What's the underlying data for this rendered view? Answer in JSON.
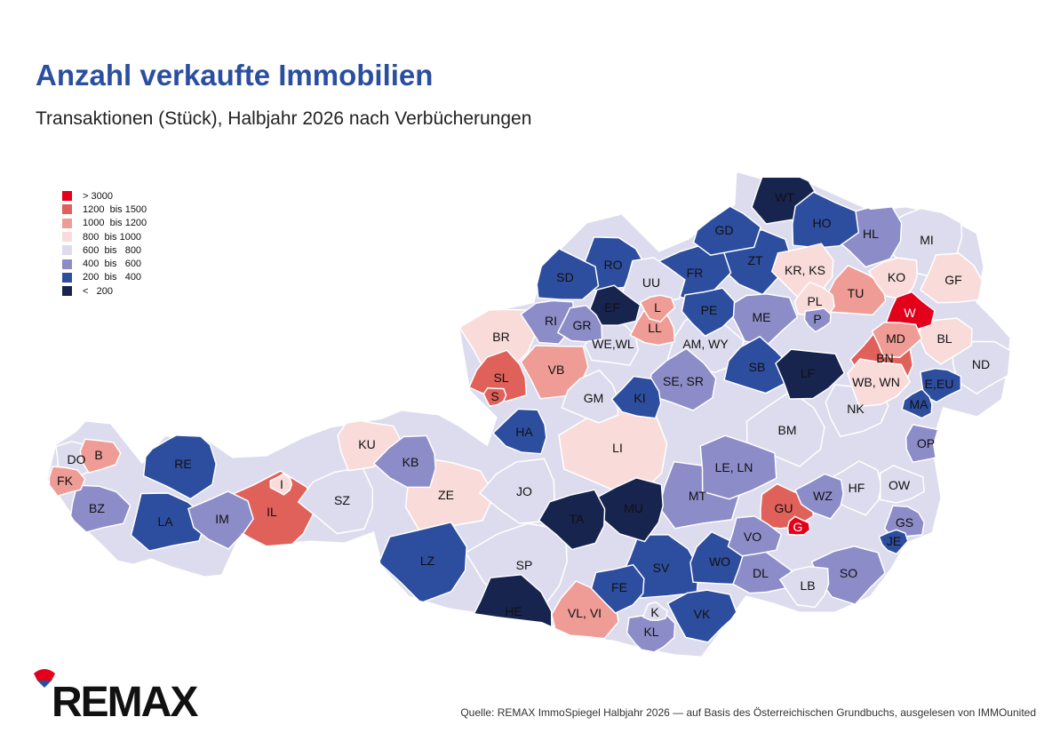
{
  "title": "Anzahl verkaufte Immobilien",
  "subtitle": "Transaktionen (Stück), Halbjahr 2026 nach Verbücherungen",
  "source": "Quelle: REMAX ImmoSpiegel Halbjahr 2026 — auf Basis des Österreichischen Grundbuchs, ausgelesen von IMMOunited",
  "logo_text": "REMAX",
  "legend": [
    {
      "label": "> 3000",
      "color": "#e2001a"
    },
    {
      "label": "1200  bis 1500",
      "color": "#e0605a"
    },
    {
      "label": "1000  bis 1200",
      "color": "#ee9c95"
    },
    {
      "label": "800  bis 1000",
      "color": "#f9dcda"
    },
    {
      "label": "600  bis   800",
      "color": "#dcdcee"
    },
    {
      "label": "400  bis   600",
      "color": "#8c8cc8"
    },
    {
      "label": "200  bis   400",
      "color": "#2d4d9e"
    },
    {
      "label": "<   200",
      "color": "#17244e"
    }
  ],
  "districts": [
    {
      "code": "WT",
      "class": 7
    },
    {
      "code": "HO",
      "class": 6
    },
    {
      "code": "GD",
      "class": 6
    },
    {
      "code": "ZT",
      "class": 6
    },
    {
      "code": "HL",
      "class": 5
    },
    {
      "code": "MI",
      "class": 4
    },
    {
      "code": "RO",
      "class": 6
    },
    {
      "code": "SD",
      "class": 6
    },
    {
      "code": "UU",
      "class": 4
    },
    {
      "code": "FR",
      "class": 6
    },
    {
      "code": "KR, KS",
      "class": 3
    },
    {
      "code": "KO",
      "class": 3
    },
    {
      "code": "GF",
      "class": 3
    },
    {
      "code": "TU",
      "class": 2
    },
    {
      "code": "EF",
      "class": 7
    },
    {
      "code": "L",
      "class": 2
    },
    {
      "code": "PE",
      "class": 6
    },
    {
      "code": "RI",
      "class": 5
    },
    {
      "code": "GR",
      "class": 5
    },
    {
      "code": "PL",
      "class": 3
    },
    {
      "code": "W",
      "class": 0
    },
    {
      "code": "ME",
      "class": 5
    },
    {
      "code": "P",
      "class": 5
    },
    {
      "code": "BR",
      "class": 3
    },
    {
      "code": "LL",
      "class": 2
    },
    {
      "code": "WE,WL",
      "class": 4
    },
    {
      "code": "AM, WY",
      "class": 4
    },
    {
      "code": "MD",
      "class": 2
    },
    {
      "code": "BL",
      "class": 3
    },
    {
      "code": "VB",
      "class": 2
    },
    {
      "code": "SL",
      "class": 1
    },
    {
      "code": "BN",
      "class": 1
    },
    {
      "code": "SB",
      "class": 6
    },
    {
      "code": "LF",
      "class": 7
    },
    {
      "code": "ND",
      "class": 4
    },
    {
      "code": "S",
      "class": 1
    },
    {
      "code": "GM",
      "class": 4
    },
    {
      "code": "KI",
      "class": 6
    },
    {
      "code": "SE, SR",
      "class": 5
    },
    {
      "code": "WB, WN",
      "class": 3
    },
    {
      "code": "E,EU",
      "class": 6
    },
    {
      "code": "NK",
      "class": 4
    },
    {
      "code": "MA",
      "class": 6
    },
    {
      "code": "HA",
      "class": 6
    },
    {
      "code": "BM",
      "class": 4
    },
    {
      "code": "KU",
      "class": 3
    },
    {
      "code": "DO",
      "class": 4
    },
    {
      "code": "B",
      "class": 2
    },
    {
      "code": "RE",
      "class": 6
    },
    {
      "code": "KB",
      "class": 5
    },
    {
      "code": "LI",
      "class": 3
    },
    {
      "code": "OP",
      "class": 5
    },
    {
      "code": "LE, LN",
      "class": 5
    },
    {
      "code": "FK",
      "class": 2
    },
    {
      "code": "I",
      "class": 3
    },
    {
      "code": "JO",
      "class": 4
    },
    {
      "code": "HF",
      "class": 4
    },
    {
      "code": "ZE",
      "class": 3
    },
    {
      "code": "OW",
      "class": 4
    },
    {
      "code": "BZ",
      "class": 5
    },
    {
      "code": "IL",
      "class": 1
    },
    {
      "code": "SZ",
      "class": 4
    },
    {
      "code": "WZ",
      "class": 5
    },
    {
      "code": "MT",
      "class": 5
    },
    {
      "code": "GU",
      "class": 1
    },
    {
      "code": "LA",
      "class": 6
    },
    {
      "code": "IM",
      "class": 5
    },
    {
      "code": "TA",
      "class": 7
    },
    {
      "code": "MU",
      "class": 7
    },
    {
      "code": "GS",
      "class": 5
    },
    {
      "code": "G",
      "class": 0
    },
    {
      "code": "VO",
      "class": 5
    },
    {
      "code": "JE",
      "class": 6
    },
    {
      "code": "LZ",
      "class": 6
    },
    {
      "code": "SP",
      "class": 4
    },
    {
      "code": "SV",
      "class": 6
    },
    {
      "code": "WO",
      "class": 6
    },
    {
      "code": "DL",
      "class": 5
    },
    {
      "code": "SO",
      "class": 5
    },
    {
      "code": "FE",
      "class": 6
    },
    {
      "code": "LB",
      "class": 4
    },
    {
      "code": "HE",
      "class": 7
    },
    {
      "code": "VL, VI",
      "class": 2
    },
    {
      "code": "K",
      "class": 4
    },
    {
      "code": "VK",
      "class": 6
    },
    {
      "code": "KL",
      "class": 5
    }
  ]
}
